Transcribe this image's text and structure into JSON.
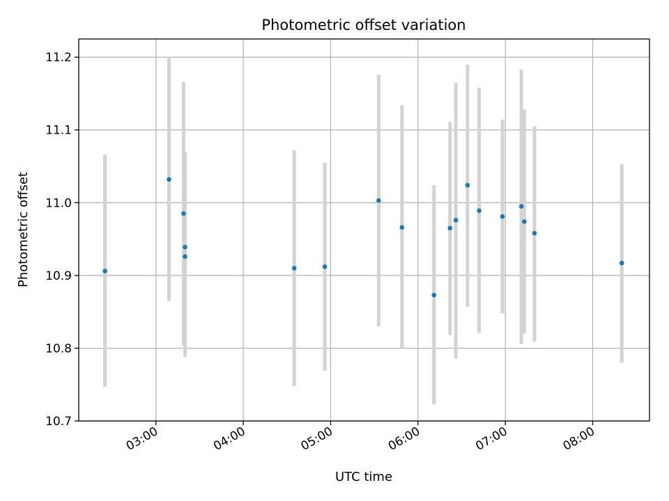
{
  "chart_data": {
    "type": "scatter",
    "title": "Photometric offset variation",
    "xlabel": "UTC time",
    "ylabel": "Photometric offset",
    "x_axis_type": "time",
    "xlim": [
      "02:07",
      "08:39"
    ],
    "ylim": [
      10.7,
      11.225
    ],
    "x_ticks": [
      "03:00",
      "04:00",
      "05:00",
      "06:00",
      "07:00",
      "08:00"
    ],
    "y_ticks": [
      10.7,
      10.8,
      10.9,
      11.0,
      11.1,
      11.2
    ],
    "y_tick_labels": [
      "10.7",
      "10.8",
      "10.9",
      "11.0",
      "11.1",
      "11.2"
    ],
    "grid": true,
    "colors": {
      "point": "#1f77b4",
      "errorbar": "#d3d3d3"
    },
    "points": [
      {
        "x": "02:25",
        "y": 10.906,
        "ylo": 10.747,
        "yhi": 11.066
      },
      {
        "x": "03:09",
        "y": 11.032,
        "ylo": 10.865,
        "yhi": 11.199
      },
      {
        "x": "03:19",
        "y": 10.985,
        "ylo": 10.804,
        "yhi": 11.166
      },
      {
        "x": "03:20",
        "y": 10.939,
        "ylo": 10.808,
        "yhi": 11.07
      },
      {
        "x": "03:20",
        "y": 10.926,
        "ylo": 10.788,
        "yhi": 11.066
      },
      {
        "x": "04:35",
        "y": 10.91,
        "ylo": 10.748,
        "yhi": 11.072
      },
      {
        "x": "04:56",
        "y": 10.912,
        "ylo": 10.769,
        "yhi": 11.055
      },
      {
        "x": "05:33",
        "y": 11.003,
        "ylo": 10.83,
        "yhi": 11.176
      },
      {
        "x": "05:49",
        "y": 10.966,
        "ylo": 10.8,
        "yhi": 11.134
      },
      {
        "x": "06:11",
        "y": 10.873,
        "ylo": 10.723,
        "yhi": 11.024
      },
      {
        "x": "06:22",
        "y": 10.965,
        "ylo": 10.818,
        "yhi": 11.111
      },
      {
        "x": "06:26",
        "y": 10.976,
        "ylo": 10.786,
        "yhi": 11.165
      },
      {
        "x": "06:34",
        "y": 11.024,
        "ylo": 10.857,
        "yhi": 11.19
      },
      {
        "x": "06:42",
        "y": 10.989,
        "ylo": 10.821,
        "yhi": 11.158
      },
      {
        "x": "06:58",
        "y": 10.981,
        "ylo": 10.848,
        "yhi": 11.114
      },
      {
        "x": "07:11",
        "y": 10.995,
        "ylo": 10.806,
        "yhi": 11.183
      },
      {
        "x": "07:13",
        "y": 10.974,
        "ylo": 10.82,
        "yhi": 11.128
      },
      {
        "x": "07:20",
        "y": 10.958,
        "ylo": 10.809,
        "yhi": 11.105
      },
      {
        "x": "08:20",
        "y": 10.917,
        "ylo": 10.78,
        "yhi": 11.053
      }
    ]
  }
}
